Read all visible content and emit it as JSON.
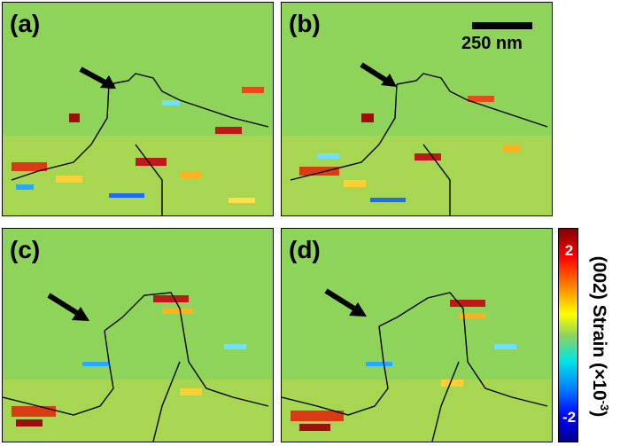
{
  "panels": [
    {
      "id": "a",
      "label": "(a)"
    },
    {
      "id": "b",
      "label": "(b)"
    },
    {
      "id": "c",
      "label": "(c)"
    },
    {
      "id": "d",
      "label": "(d)"
    }
  ],
  "scale_bar": {
    "label": "250 nm"
  },
  "colorbar": {
    "title_main": "(002) Strain (×10",
    "title_exp": "-3",
    "title_close": ")",
    "tick_top": "2",
    "tick_bottom": "-2"
  },
  "colors": {
    "background": "#8fd45a",
    "outline": "#000000",
    "arrow": "#000000"
  }
}
